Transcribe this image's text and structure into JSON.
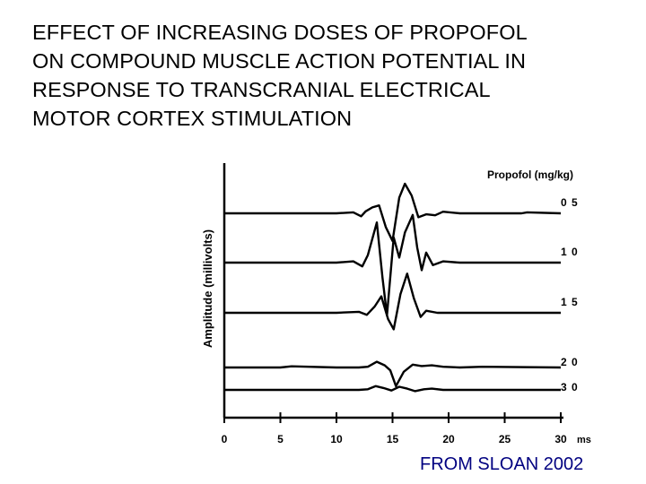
{
  "slide": {
    "title_lines": [
      "EFFECT OF INCREASING DOSES OF PROPOFOL",
      "ON COMPOUND MUSCLE ACTION POTENTIAL IN",
      "RESPONSE TO TRANSCRANIAL ELECTRICAL",
      "MOTOR CORTEX STIMULATION"
    ],
    "source": "FROM SLOAN 2002"
  },
  "colors": {
    "text": "#000000",
    "source": "#000080",
    "ink": "#000000"
  },
  "chart_data": {
    "type": "line",
    "ylabel": "Amplitude (millivolts)",
    "xunit": "ms",
    "legend_title": "Propofol (mg/kg)",
    "xlim": [
      0,
      30
    ],
    "xticks": [
      0,
      5,
      10,
      15,
      20,
      25,
      30
    ],
    "xtick_labels": [
      "0",
      "5",
      "10",
      "15",
      "20",
      "25",
      "30"
    ],
    "series": [
      {
        "name": "0 5",
        "x": [
          0,
          10,
          11.5,
          12.2,
          12.6,
          13.2,
          13.8,
          14.4,
          15.0,
          15.6,
          16.1,
          16.7,
          17.3,
          18.0,
          18.8,
          19.5,
          21,
          23,
          26.5,
          27,
          30
        ],
        "y": [
          0,
          0,
          0.05,
          -0.15,
          0.1,
          0.3,
          0.4,
          -0.7,
          -1.4,
          0.8,
          1.5,
          0.9,
          -0.2,
          -0.05,
          -0.1,
          0.08,
          0,
          0,
          0,
          0.05,
          0
        ]
      },
      {
        "name": "1 0",
        "x": [
          0,
          10,
          11.5,
          12.3,
          12.8,
          13.6,
          14.1,
          14.5,
          15.1,
          15.6,
          16.1,
          16.8,
          17.2,
          17.6,
          18.0,
          18.6,
          19.5,
          21,
          24,
          30
        ],
        "y": [
          0,
          0,
          0.05,
          -0.15,
          0.3,
          1.6,
          -0.6,
          -2.1,
          1.0,
          0.2,
          1.2,
          1.9,
          0.6,
          -0.3,
          0.4,
          -0.1,
          0.05,
          0,
          0,
          0
        ]
      },
      {
        "name": "1 5",
        "x": [
          0,
          10,
          12.0,
          12.7,
          13.4,
          14.0,
          14.6,
          15.1,
          15.7,
          16.3,
          16.9,
          17.5,
          18.0,
          19.0,
          20,
          24,
          30
        ],
        "y": [
          0,
          0,
          0.05,
          -0.1,
          0.3,
          0.8,
          -0.3,
          -0.8,
          0.9,
          1.9,
          0.7,
          -0.2,
          0.1,
          0,
          0,
          0,
          0
        ]
      },
      {
        "name": "2 0",
        "x": [
          0,
          5,
          6,
          10,
          12.0,
          12.8,
          13.6,
          14.3,
          14.8,
          15.3,
          16.0,
          16.8,
          17.6,
          18.5,
          19.5,
          21,
          23,
          30
        ],
        "y": [
          0,
          0,
          0.08,
          0,
          0,
          0.05,
          0.4,
          0.15,
          -0.2,
          -1.3,
          -0.3,
          0.2,
          0.1,
          0.15,
          0.05,
          0,
          0.05,
          0
        ]
      },
      {
        "name": "3 0",
        "x": [
          0,
          8,
          10,
          12.0,
          12.8,
          13.5,
          14.2,
          14.9,
          15.6,
          16.3,
          17.0,
          17.8,
          18.5,
          19.5,
          21,
          30
        ],
        "y": [
          0,
          0,
          0,
          0,
          0.05,
          0.3,
          0.15,
          -0.05,
          0.25,
          0.1,
          -0.1,
          0.05,
          0.1,
          0,
          0,
          0
        ]
      }
    ]
  }
}
